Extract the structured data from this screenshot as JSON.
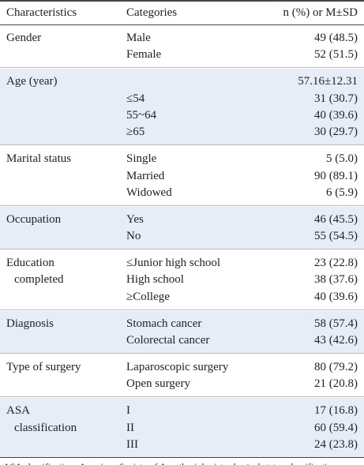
{
  "header": {
    "characteristics": "Characteristics",
    "categories": "Categories",
    "values": "n (%) or M±SD"
  },
  "groups": [
    {
      "characteristic": [
        "Gender"
      ],
      "rows": [
        [
          "Male",
          "49 (48.5)"
        ],
        [
          "Female",
          "52 (51.5)"
        ]
      ]
    },
    {
      "characteristic": [
        "Age (year)"
      ],
      "rows": [
        [
          null,
          "57.16±12.31"
        ],
        [
          "≤54",
          "31 (30.7)"
        ],
        [
          "55~64",
          "40 (39.6)"
        ],
        [
          "≥65",
          "30 (29.7)"
        ]
      ]
    },
    {
      "characteristic": [
        "Marital status"
      ],
      "rows": [
        [
          "Single",
          "5 (5.0)"
        ],
        [
          "Married",
          "90 (89.1)"
        ],
        [
          "Widowed",
          "6 (5.9)"
        ]
      ]
    },
    {
      "characteristic": [
        "Occupation"
      ],
      "rows": [
        [
          "Yes",
          "46 (45.5)"
        ],
        [
          "No",
          "55 (54.5)"
        ]
      ]
    },
    {
      "characteristic": [
        "Education",
        "completed"
      ],
      "rows": [
        [
          "≤Junior high school",
          "23 (22.8)"
        ],
        [
          "High school",
          "38 (37.6)"
        ],
        [
          "≥College",
          "40 (39.6)"
        ]
      ]
    },
    {
      "characteristic": [
        "Diagnosis"
      ],
      "rows": [
        [
          "Stomach cancer",
          "58 (57.4)"
        ],
        [
          "Colorectal cancer",
          "43 (42.6)"
        ]
      ]
    },
    {
      "characteristic": [
        "Type of surgery"
      ],
      "rows": [
        [
          "Laparoscopic surgery",
          "80 (79.2)"
        ],
        [
          "Open surgery",
          "21 (20.8)"
        ]
      ]
    },
    {
      "characteristic": [
        "ASA",
        "classification"
      ],
      "rows": [
        [
          "I",
          "17 (16.8)"
        ],
        [
          "II",
          "60 (59.4)"
        ],
        [
          "III",
          "24 (23.8)"
        ]
      ]
    }
  ],
  "footnote": "ASA classification=American Society of Anesthesiologists physical status classification."
}
